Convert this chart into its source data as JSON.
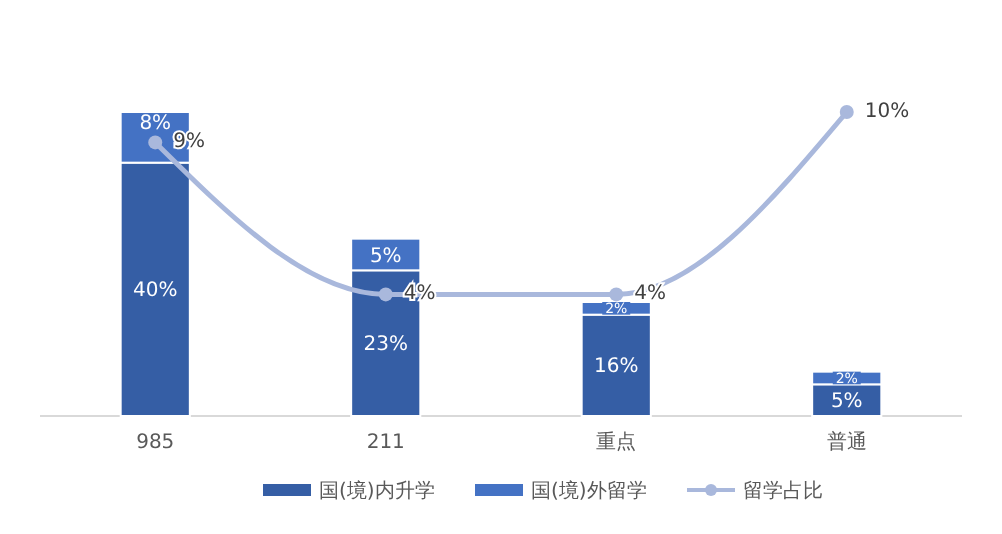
{
  "chart_data": {
    "type": "bar",
    "stacked": true,
    "categories": [
      "985",
      "211",
      "重点",
      "普通"
    ],
    "tick_labels": "x",
    "legend": "bottom",
    "series": [
      {
        "name": "国(境)内升学",
        "color": "#355ea5",
        "values": [
          40,
          23,
          16,
          5
        ],
        "value_labels": [
          "40%",
          "23%",
          "16%",
          "5%"
        ]
      },
      {
        "name": "国(境)外留学",
        "color": "#4472c4",
        "values": [
          8,
          5,
          2,
          2
        ],
        "value_labels": [
          "8%",
          "5%",
          "2%",
          "2%"
        ]
      },
      {
        "name": "留学占比",
        "type": "line",
        "axis": "y2",
        "color": "#a9b8dc",
        "marker": "circle",
        "values": [
          9,
          4,
          4,
          10
        ],
        "value_labels": [
          "9%",
          "4%",
          "4%",
          "10%"
        ]
      }
    ]
  }
}
